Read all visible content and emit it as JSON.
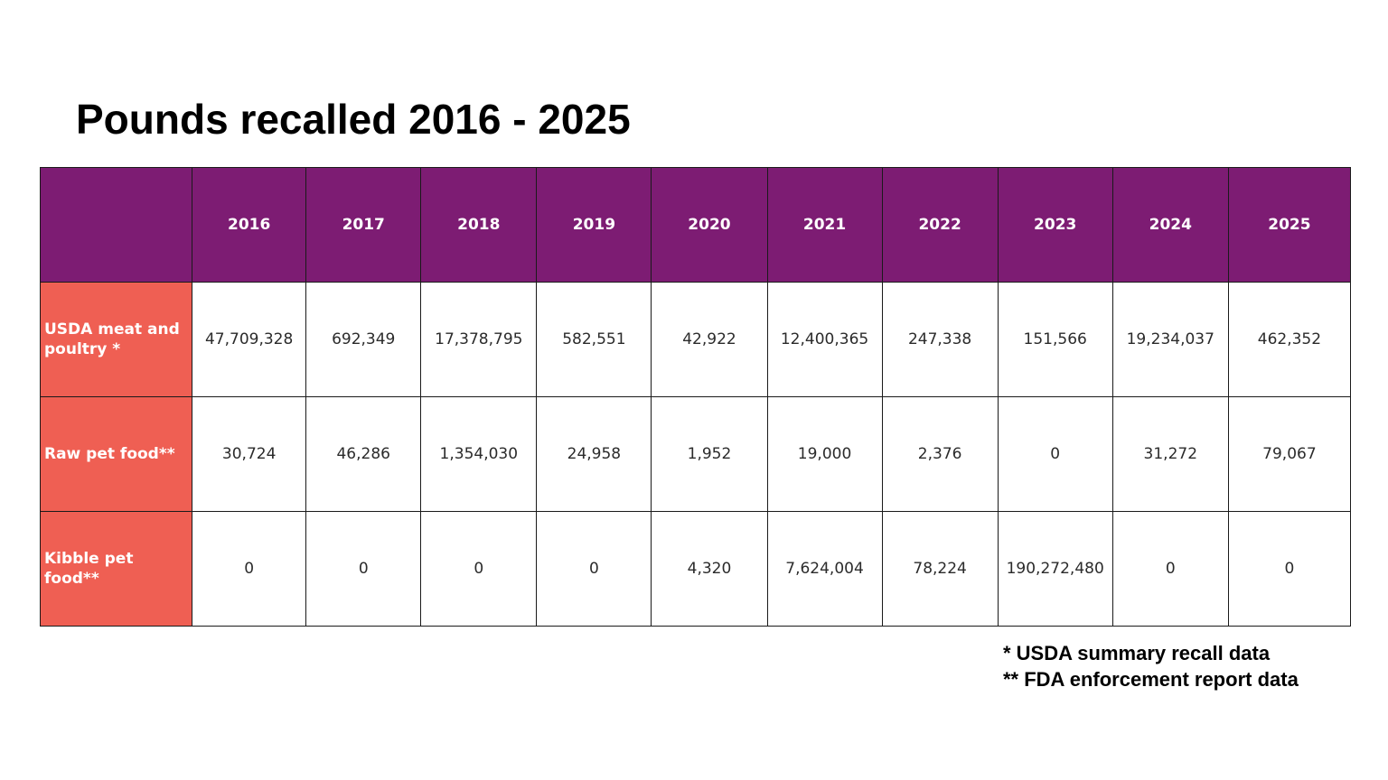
{
  "title": "Pounds recalled 2016 - 2025",
  "colors": {
    "header_bg": "#7d1c73",
    "row_label_bg": "#ef5f53",
    "header_text": "#ffffff"
  },
  "table": {
    "years": [
      "2016",
      "2017",
      "2018",
      "2019",
      "2020",
      "2021",
      "2022",
      "2023",
      "2024",
      "2025"
    ],
    "rows": [
      {
        "label": "USDA meat and poultry *",
        "values": [
          "47,709,328",
          "692,349",
          "17,378,795",
          "582,551",
          "42,922",
          "12,400,365",
          "247,338",
          "151,566",
          "19,234,037",
          "462,352"
        ]
      },
      {
        "label": "Raw pet food**",
        "values": [
          "30,724",
          "46,286",
          "1,354,030",
          "24,958",
          "1,952",
          "19,000",
          "2,376",
          "0",
          "31,272",
          "79,067"
        ]
      },
      {
        "label": "Kibble pet food**",
        "values": [
          "0",
          "0",
          "0",
          "0",
          "4,320",
          "7,624,004",
          "78,224",
          "190,272,480",
          "0",
          "0"
        ]
      }
    ]
  },
  "notes": [
    "* USDA summary recall data",
    "** FDA enforcement report data"
  ]
}
